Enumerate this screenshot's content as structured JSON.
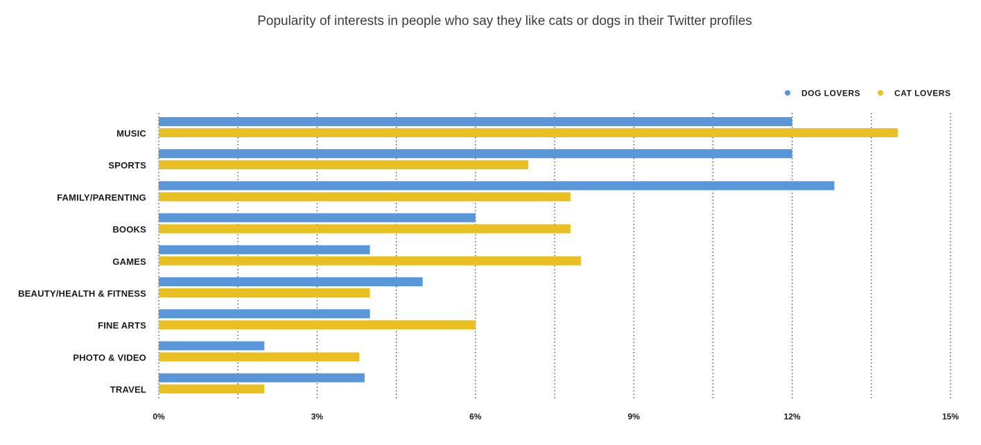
{
  "chart_data": {
    "type": "bar",
    "orientation": "horizontal",
    "title": "Popularity of interests in people who say they like cats or dogs in their Twitter profiles",
    "xlabel": "",
    "ylabel": "",
    "xlim": [
      0,
      15
    ],
    "tick_values": [
      0,
      3,
      6,
      9,
      12,
      15
    ],
    "tick_labels": [
      "0%",
      "3%",
      "6%",
      "9%",
      "12%",
      "15%"
    ],
    "grid": "dotted vertical",
    "legend_position": "top-right",
    "categories": [
      "MUSIC",
      "SPORTS",
      "FAMILY/PARENTING",
      "BOOKS",
      "GAMES",
      "BEAUTY/HEALTH & FITNESS",
      "FINE ARTS",
      "PHOTO & VIDEO",
      "TRAVEL"
    ],
    "series": [
      {
        "name": "DOG LOVERS",
        "color": "#5a97d9",
        "values": [
          12.0,
          12.0,
          12.8,
          6.0,
          4.0,
          5.0,
          4.0,
          2.0,
          3.9
        ]
      },
      {
        "name": "CAT LOVERS",
        "color": "#e9c024",
        "values": [
          14.0,
          7.0,
          7.8,
          7.8,
          8.0,
          4.0,
          6.0,
          3.8,
          2.0
        ]
      }
    ]
  }
}
